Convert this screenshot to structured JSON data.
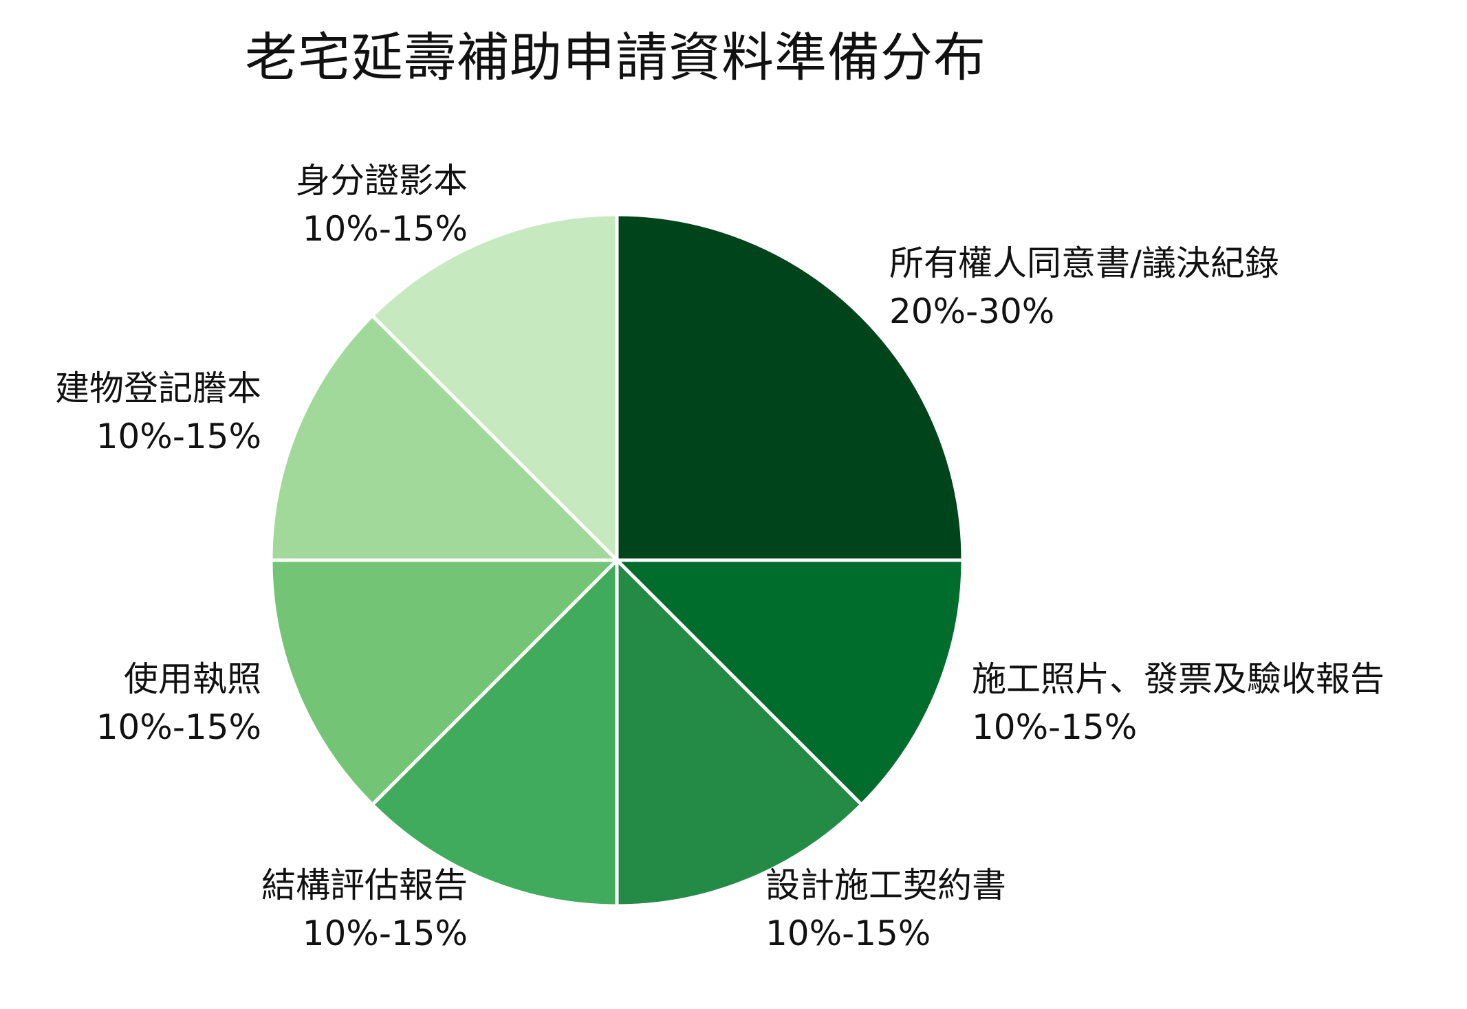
{
  "chart_data": {
    "type": "pie",
    "title": "老宅延壽補助申請資料準備分布",
    "start_angle_deg": 90,
    "direction": "clockwise",
    "slices": [
      {
        "label": "所有權人同意書/議決紀錄",
        "range_text": "20%-30%",
        "value": 25,
        "color": "#00441b"
      },
      {
        "label": "施工照片、發票及驗收報告",
        "range_text": "10%-15%",
        "value": 12.5,
        "color": "#006d2c"
      },
      {
        "label": "設計施工契約書",
        "range_text": "10%-15%",
        "value": 12.5,
        "color": "#238b45"
      },
      {
        "label": "結構評估報告",
        "range_text": "10%-15%",
        "value": 12.5,
        "color": "#41ab5d"
      },
      {
        "label": "使用執照",
        "range_text": "10%-15%",
        "value": 12.5,
        "color": "#74c476"
      },
      {
        "label": "建物登記謄本",
        "range_text": "10%-15%",
        "value": 12.5,
        "color": "#a1d99b"
      },
      {
        "label": "身分證影本",
        "range_text": "10%-15%",
        "value": 12.5,
        "color": "#c7e9c0"
      }
    ]
  }
}
